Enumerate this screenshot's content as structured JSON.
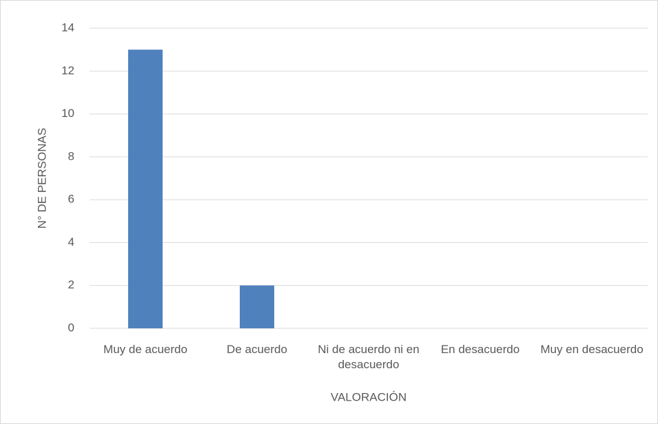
{
  "chart_data": {
    "type": "bar",
    "categories": [
      "Muy de acuerdo",
      "De acuerdo",
      "Ni de acuerdo ni en desacuerdo",
      "En desacuerdo",
      "Muy en desacuerdo"
    ],
    "values": [
      13,
      2,
      0,
      0,
      0
    ],
    "color": "#4f81bd",
    "xlabel": "VALORACIÓN",
    "ylabel": "N° DE PERSONAS",
    "ylim": [
      0,
      14
    ],
    "yticks": [
      0,
      2,
      4,
      6,
      8,
      10,
      12,
      14
    ],
    "grid": true
  }
}
